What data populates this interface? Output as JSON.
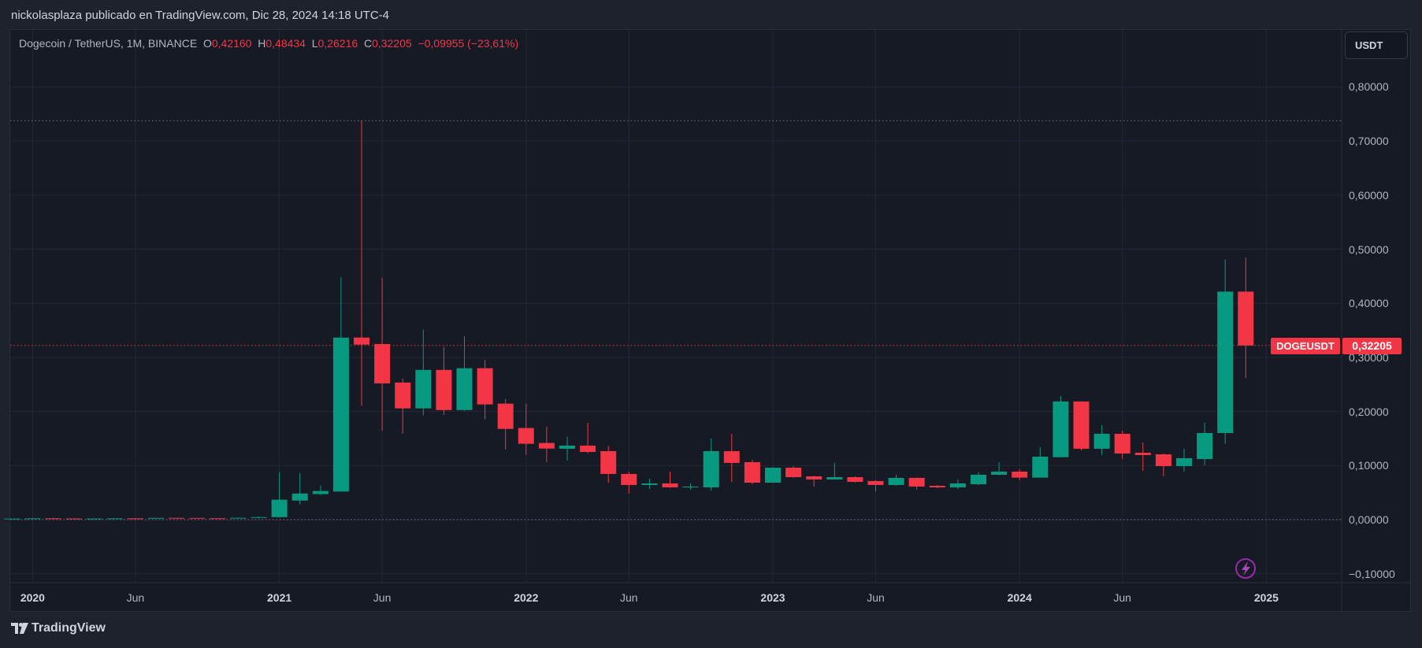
{
  "publication": "nickolasplaza publicado en TradingView.com, Dic 28, 2024 14:18 UTC-4",
  "legend": {
    "symbol": "Dogecoin / TetherUS, 1M, BINANCE",
    "o_label": "O",
    "o": "0,42160",
    "h_label": "H",
    "h": "0,48434",
    "l_label": "L",
    "l": "0,26216",
    "c_label": "C",
    "c": "0,32205",
    "change": "−0,09955 (−23,61%)"
  },
  "currency_button": "USDT",
  "price_tag": {
    "symbol": "DOGEUSDT",
    "price": "0,32205"
  },
  "footer": {
    "brand": "TradingView"
  },
  "colors": {
    "up": "#089981",
    "down": "#f23645",
    "background": "#161a25",
    "grid": "#232733"
  },
  "chart_data": {
    "type": "candlestick",
    "title": "",
    "interval": "1M",
    "ylim": [
      -0.1,
      0.85
    ],
    "grid": true,
    "current_price": 0.32205,
    "all_time_high_line": 0.7376,
    "zero_line": 0,
    "y_ticks": [
      {
        "value": 0.8,
        "label": "0,80000"
      },
      {
        "value": 0.7,
        "label": "0,70000"
      },
      {
        "value": 0.6,
        "label": "0,60000"
      },
      {
        "value": 0.5,
        "label": "0,50000"
      },
      {
        "value": 0.4,
        "label": "0,40000"
      },
      {
        "value": 0.3,
        "label": "0,30000"
      },
      {
        "value": 0.2,
        "label": "0,20000"
      },
      {
        "value": 0.1,
        "label": "0,10000"
      },
      {
        "value": 0.0,
        "label": "0,00000"
      },
      {
        "value": -0.1,
        "label": "−0,10000"
      }
    ],
    "x_ticks": [
      {
        "date": "2020-01",
        "label": "2020",
        "year": true
      },
      {
        "date": "2020-06",
        "label": "Jun",
        "year": false
      },
      {
        "date": "2021-01",
        "label": "2021",
        "year": true
      },
      {
        "date": "2021-06",
        "label": "Jun",
        "year": false
      },
      {
        "date": "2022-01",
        "label": "2022",
        "year": true
      },
      {
        "date": "2022-06",
        "label": "Jun",
        "year": false
      },
      {
        "date": "2023-01",
        "label": "2023",
        "year": true
      },
      {
        "date": "2023-06",
        "label": "Jun",
        "year": false
      },
      {
        "date": "2024-01",
        "label": "2024",
        "year": true
      },
      {
        "date": "2024-06",
        "label": "Jun",
        "year": false
      },
      {
        "date": "2025-01",
        "label": "2025",
        "year": true
      }
    ],
    "columns": [
      "date",
      "open",
      "high",
      "low",
      "close"
    ],
    "candles": [
      [
        "2019-12",
        0.002,
        0.0024,
        0.0019,
        0.002
      ],
      [
        "2020-01",
        0.002,
        0.003,
        0.002,
        0.0025
      ],
      [
        "2020-02",
        0.0025,
        0.0035,
        0.0024,
        0.0022
      ],
      [
        "2020-03",
        0.0022,
        0.0024,
        0.0013,
        0.0019
      ],
      [
        "2020-04",
        0.0019,
        0.0023,
        0.0018,
        0.0021
      ],
      [
        "2020-05",
        0.0021,
        0.0027,
        0.002,
        0.0025
      ],
      [
        "2020-06",
        0.0025,
        0.0026,
        0.0023,
        0.0024
      ],
      [
        "2020-07",
        0.0024,
        0.0036,
        0.0023,
        0.0033
      ],
      [
        "2020-08",
        0.0033,
        0.004,
        0.003,
        0.0032
      ],
      [
        "2020-09",
        0.0032,
        0.0034,
        0.0025,
        0.0026
      ],
      [
        "2020-10",
        0.0026,
        0.0027,
        0.0024,
        0.0025
      ],
      [
        "2020-11",
        0.0025,
        0.004,
        0.0025,
        0.0034
      ],
      [
        "2020-12",
        0.0034,
        0.006,
        0.003,
        0.0047
      ],
      [
        "2021-01",
        0.0047,
        0.0878,
        0.0042,
        0.0369
      ],
      [
        "2021-02",
        0.0353,
        0.0862,
        0.0286,
        0.0483
      ],
      [
        "2021-03",
        0.0473,
        0.0629,
        0.0455,
        0.053
      ],
      [
        "2021-04",
        0.052,
        0.4483,
        0.052,
        0.3366
      ],
      [
        "2021-05",
        0.3366,
        0.7376,
        0.2104,
        0.3236
      ],
      [
        "2021-06",
        0.3247,
        0.4473,
        0.1642,
        0.2519
      ],
      [
        "2021-07",
        0.2535,
        0.2608,
        0.159,
        0.2057
      ],
      [
        "2021-08",
        0.2057,
        0.3512,
        0.1927,
        0.2769
      ],
      [
        "2021-09",
        0.2769,
        0.3195,
        0.1938,
        0.2026
      ],
      [
        "2021-10",
        0.2026,
        0.3392,
        0.201,
        0.28
      ],
      [
        "2021-11",
        0.28,
        0.2956,
        0.1855,
        0.213
      ],
      [
        "2021-12",
        0.2145,
        0.2229,
        0.1299,
        0.1678
      ],
      [
        "2022-01",
        0.1694,
        0.2145,
        0.12,
        0.1403
      ],
      [
        "2022-02",
        0.1418,
        0.172,
        0.1065,
        0.1314
      ],
      [
        "2022-03",
        0.1311,
        0.1529,
        0.1092,
        0.1369
      ],
      [
        "2022-04",
        0.1369,
        0.1791,
        0.1228,
        0.1252
      ],
      [
        "2022-05",
        0.1267,
        0.1369,
        0.0684,
        0.0845
      ],
      [
        "2022-06",
        0.0845,
        0.0888,
        0.048,
        0.0641
      ],
      [
        "2022-07",
        0.0641,
        0.0757,
        0.0568,
        0.067
      ],
      [
        "2022-08",
        0.067,
        0.0888,
        0.059,
        0.0597
      ],
      [
        "2022-09",
        0.0597,
        0.067,
        0.0553,
        0.0612
      ],
      [
        "2022-10",
        0.0597,
        0.15,
        0.0539,
        0.1267
      ],
      [
        "2022-11",
        0.1267,
        0.1587,
        0.0699,
        0.1049
      ],
      [
        "2022-12",
        0.1063,
        0.1107,
        0.0655,
        0.0684
      ],
      [
        "2023-01",
        0.0684,
        0.0976,
        0.068,
        0.0961
      ],
      [
        "2023-02",
        0.0961,
        0.099,
        0.0772,
        0.0786
      ],
      [
        "2023-03",
        0.0801,
        0.0815,
        0.0612,
        0.0743
      ],
      [
        "2023-04",
        0.0743,
        0.1049,
        0.0743,
        0.0786
      ],
      [
        "2023-05",
        0.0786,
        0.0801,
        0.0684,
        0.0699
      ],
      [
        "2023-06",
        0.0714,
        0.0728,
        0.0524,
        0.0641
      ],
      [
        "2023-07",
        0.0641,
        0.083,
        0.0626,
        0.0772
      ],
      [
        "2023-08",
        0.0772,
        0.078,
        0.0553,
        0.0612
      ],
      [
        "2023-09",
        0.0626,
        0.0641,
        0.0583,
        0.0597
      ],
      [
        "2023-10",
        0.0597,
        0.0743,
        0.0568,
        0.067
      ],
      [
        "2023-11",
        0.0655,
        0.0874,
        0.0641,
        0.083
      ],
      [
        "2023-12",
        0.083,
        0.1063,
        0.082,
        0.0888
      ],
      [
        "2024-01",
        0.0888,
        0.0932,
        0.0728,
        0.0777
      ],
      [
        "2024-02",
        0.0777,
        0.134,
        0.0777,
        0.1165
      ],
      [
        "2024-03",
        0.1155,
        0.2286,
        0.1155,
        0.2185
      ],
      [
        "2024-04",
        0.2185,
        0.2185,
        0.128,
        0.1311
      ],
      [
        "2024-05",
        0.1311,
        0.1748,
        0.1194,
        0.1587
      ],
      [
        "2024-06",
        0.1587,
        0.1646,
        0.112,
        0.1223
      ],
      [
        "2024-07",
        0.1237,
        0.1427,
        0.0903,
        0.1194
      ],
      [
        "2024-08",
        0.1208,
        0.1223,
        0.08,
        0.099
      ],
      [
        "2024-09",
        0.099,
        0.1311,
        0.0888,
        0.1136
      ],
      [
        "2024-10",
        0.1121,
        0.1791,
        0.1005,
        0.1602
      ],
      [
        "2024-11",
        0.1602,
        0.4807,
        0.1403,
        0.4216
      ],
      [
        "2024-12",
        0.4216,
        0.48434,
        0.26216,
        0.32205
      ]
    ]
  }
}
